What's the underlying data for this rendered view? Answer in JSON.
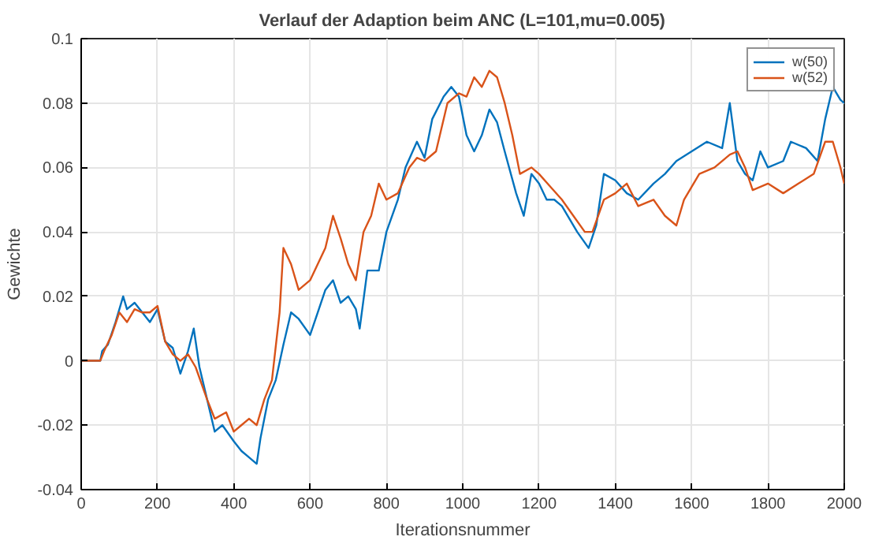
{
  "chart_data": {
    "type": "line",
    "title": "Verlauf der Adaption beim ANC (L=101,mu=0.005)",
    "xlabel": "Iterationsnummer",
    "ylabel": "Gewichte",
    "xlim": [
      0,
      2000
    ],
    "xticks": [
      0,
      200,
      400,
      600,
      800,
      1000,
      1200,
      1400,
      1600,
      1800,
      2000
    ],
    "ylim": [
      -0.04,
      0.1
    ],
    "yticks": [
      -0.04,
      -0.02,
      0,
      0.02,
      0.04,
      0.06,
      0.08,
      0.1
    ],
    "grid": true,
    "legend": "top right",
    "series": [
      {
        "name": "w(50)",
        "color": "#0072bd",
        "x": [
          0,
          50,
          55,
          70,
          90,
          110,
          120,
          140,
          160,
          180,
          200,
          220,
          240,
          260,
          280,
          295,
          310,
          330,
          350,
          370,
          400,
          420,
          440,
          460,
          470,
          490,
          510,
          530,
          550,
          570,
          600,
          620,
          640,
          660,
          680,
          700,
          720,
          730,
          750,
          780,
          800,
          830,
          850,
          880,
          900,
          920,
          950,
          970,
          990,
          1010,
          1030,
          1050,
          1070,
          1090,
          1110,
          1140,
          1160,
          1180,
          1200,
          1220,
          1240,
          1260,
          1300,
          1330,
          1350,
          1370,
          1400,
          1430,
          1460,
          1500,
          1530,
          1560,
          1600,
          1640,
          1680,
          1700,
          1720,
          1740,
          1760,
          1780,
          1800,
          1840,
          1860,
          1900,
          1930,
          1950,
          1970,
          1990,
          2000
        ],
        "values": [
          0,
          0,
          0.003,
          0.005,
          0.012,
          0.02,
          0.016,
          0.018,
          0.015,
          0.012,
          0.016,
          0.006,
          0.004,
          -0.004,
          0.003,
          0.01,
          -0.002,
          -0.012,
          -0.022,
          -0.02,
          -0.025,
          -0.028,
          -0.03,
          -0.032,
          -0.024,
          -0.012,
          -0.006,
          0.005,
          0.015,
          0.013,
          0.008,
          0.015,
          0.022,
          0.025,
          0.018,
          0.02,
          0.016,
          0.01,
          0.028,
          0.028,
          0.04,
          0.05,
          0.06,
          0.068,
          0.063,
          0.075,
          0.082,
          0.085,
          0.082,
          0.07,
          0.065,
          0.07,
          0.078,
          0.074,
          0.065,
          0.052,
          0.045,
          0.058,
          0.055,
          0.05,
          0.05,
          0.048,
          0.04,
          0.035,
          0.042,
          0.058,
          0.056,
          0.052,
          0.05,
          0.055,
          0.058,
          0.062,
          0.065,
          0.068,
          0.066,
          0.08,
          0.062,
          0.058,
          0.056,
          0.065,
          0.06,
          0.062,
          0.068,
          0.066,
          0.062,
          0.075,
          0.085,
          0.081,
          0.08
        ]
      },
      {
        "name": "w(52)",
        "color": "#d95319",
        "x": [
          0,
          50,
          60,
          80,
          100,
          120,
          140,
          160,
          180,
          200,
          220,
          240,
          260,
          280,
          300,
          330,
          350,
          380,
          400,
          420,
          440,
          460,
          480,
          500,
          520,
          530,
          550,
          570,
          600,
          620,
          640,
          660,
          680,
          700,
          720,
          740,
          760,
          780,
          800,
          830,
          860,
          880,
          900,
          930,
          960,
          990,
          1010,
          1030,
          1050,
          1070,
          1090,
          1110,
          1130,
          1150,
          1180,
          1200,
          1230,
          1260,
          1290,
          1320,
          1340,
          1370,
          1400,
          1430,
          1460,
          1500,
          1530,
          1560,
          1580,
          1620,
          1660,
          1700,
          1720,
          1740,
          1760,
          1800,
          1840,
          1880,
          1920,
          1950,
          1970,
          1990,
          2000
        ],
        "values": [
          0,
          0,
          0.003,
          0.008,
          0.015,
          0.012,
          0.016,
          0.015,
          0.015,
          0.017,
          0.006,
          0.002,
          0.0,
          0.002,
          -0.002,
          -0.012,
          -0.018,
          -0.016,
          -0.022,
          -0.02,
          -0.018,
          -0.02,
          -0.012,
          -0.006,
          0.015,
          0.035,
          0.03,
          0.022,
          0.025,
          0.03,
          0.035,
          0.045,
          0.038,
          0.03,
          0.025,
          0.04,
          0.045,
          0.055,
          0.05,
          0.052,
          0.06,
          0.063,
          0.062,
          0.065,
          0.08,
          0.083,
          0.082,
          0.088,
          0.085,
          0.09,
          0.088,
          0.08,
          0.07,
          0.058,
          0.06,
          0.058,
          0.054,
          0.05,
          0.045,
          0.04,
          0.04,
          0.05,
          0.052,
          0.055,
          0.048,
          0.05,
          0.045,
          0.042,
          0.05,
          0.058,
          0.06,
          0.064,
          0.065,
          0.06,
          0.053,
          0.055,
          0.052,
          0.055,
          0.058,
          0.068,
          0.068,
          0.06,
          0.055
        ]
      }
    ]
  }
}
